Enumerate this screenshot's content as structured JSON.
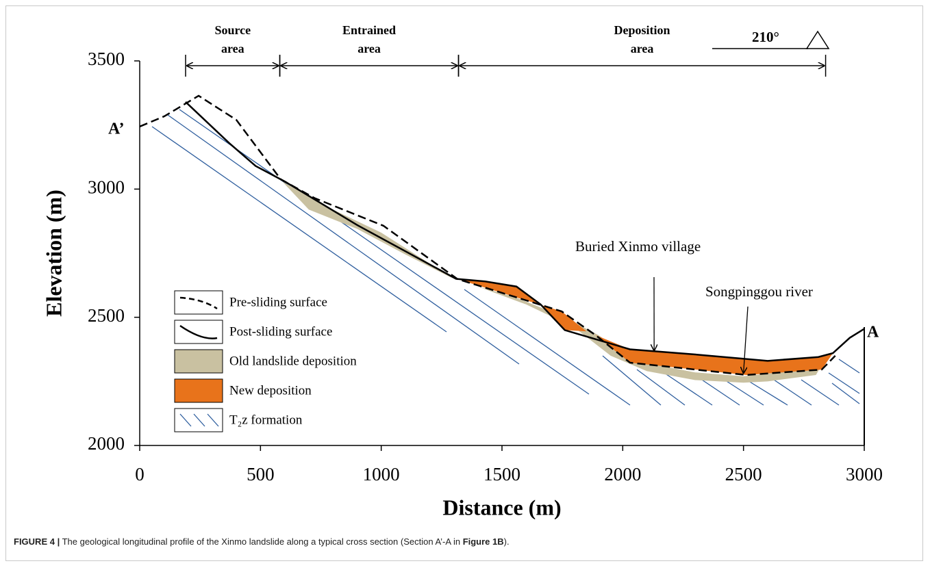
{
  "chart_data": {
    "type": "profile",
    "xlabel": "Distance (m)",
    "ylabel": "Elevation (m)",
    "xlim": [
      0,
      3000
    ],
    "ylim": [
      2000,
      3500
    ],
    "xticks": [
      0,
      500,
      1000,
      1500,
      2000,
      2500,
      3000
    ],
    "yticks": [
      2000,
      2500,
      3000,
      3500
    ],
    "series": [
      {
        "name": "Pre-sliding surface",
        "style": "dashed",
        "color": "#000000",
        "x": [
          0,
          102,
          244,
          400,
          584,
          726,
          1009,
          1316,
          1747,
          1888,
          2030,
          2512,
          2824,
          2880
        ],
        "values": [
          3244,
          3284,
          3364,
          3270,
          3038,
          2964,
          2857,
          2649,
          2523,
          2430,
          2323,
          2275,
          2296,
          2350
        ]
      },
      {
        "name": "Post-sliding surface",
        "style": "solid",
        "color": "#000000",
        "x": [
          190,
          370,
          480,
          600,
          900,
          1310,
          1430,
          1560,
          1660,
          1760,
          2030,
          2300,
          2600,
          2810,
          2870,
          2940,
          3000
        ],
        "values": [
          3340,
          3180,
          3090,
          3030,
          2860,
          2650,
          2640,
          2620,
          2550,
          2450,
          2375,
          2355,
          2330,
          2345,
          2360,
          2420,
          2455
        ]
      },
      {
        "name": "Old landslide deposition",
        "style": "area",
        "color": "#c9c1a1",
        "x": [
          590,
          800,
          1000,
          1300,
          1100,
          900,
          700,
          1330,
          1550,
          1760,
          1900,
          2050,
          2300,
          2500,
          2700,
          2840,
          2800,
          2600,
          2500,
          2300,
          2100,
          1950,
          1800,
          1600,
          1400
        ],
        "values": [
          3030,
          2920,
          2830,
          2650,
          2745,
          2845,
          2920,
          null,
          2580,
          2500,
          2430,
          2330,
          2285,
          2270,
          2290,
          2340,
          2275,
          2250,
          2245,
          2255,
          2290,
          2350,
          2460,
          2550,
          2620
        ]
      },
      {
        "name": "New deposition",
        "style": "area",
        "color": "#e8731b",
        "x": [
          1310,
          1430,
          1560,
          1660,
          1760,
          1850,
          2030,
          2300,
          2600,
          2810,
          2870,
          2824,
          2512,
          2030,
          1888,
          1850,
          1747,
          1316
        ],
        "values": [
          2650,
          2640,
          2620,
          2550,
          2450,
          2445,
          2375,
          2355,
          2330,
          2345,
          2360,
          2296,
          2275,
          2323,
          2430,
          2445,
          2523,
          2649
        ]
      },
      {
        "name": "T₂z formation",
        "style": "hatch",
        "color": "#2e5e9e"
      }
    ],
    "zones": [
      {
        "label": [
          "Source",
          "area"
        ],
        "start": 190,
        "end": 580
      },
      {
        "label": [
          "Entrained",
          "area"
        ],
        "start": 580,
        "end": 1320
      },
      {
        "label": [
          "Deposition",
          "area"
        ],
        "start": 1320,
        "end": 2840
      }
    ],
    "annotations": [
      {
        "text": "Buried  Xinmo village",
        "at": [
          2130,
          2360
        ]
      },
      {
        "text": "Songpinggou river",
        "at": [
          2500,
          2272
        ]
      }
    ],
    "section_start": "A’",
    "section_end": "A",
    "direction": "210°"
  },
  "caption": {
    "label": "FIGURE 4 |",
    "text": " The geological longitudinal profile of the Xinmo landslide along a typical cross section (Section A’-A in ",
    "ref": "Figure 1B",
    "end": ")."
  }
}
